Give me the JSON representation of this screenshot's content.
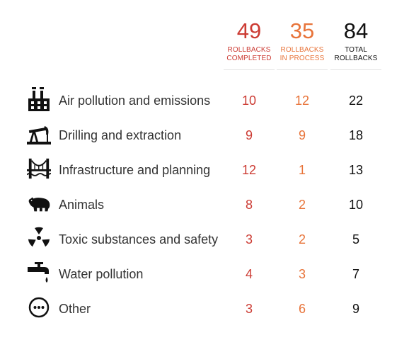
{
  "chart_data": {
    "type": "table",
    "columns": [
      {
        "value": "49",
        "label_line1": "ROLLBACKS",
        "label_line2": "COMPLETED",
        "color": "#cc3b33"
      },
      {
        "value": "35",
        "label_line1": "ROLLBACKS",
        "label_line2": "IN PROCESS",
        "color": "#e8743a"
      },
      {
        "value": "84",
        "label_line1": "TOTAL",
        "label_line2": "ROLLBACKS",
        "color": "#111111"
      }
    ],
    "rows": [
      {
        "icon": "factory-icon",
        "label": "Air pollution and emissions",
        "completed": "10",
        "in_process": "12",
        "total": "22"
      },
      {
        "icon": "oil-pump-icon",
        "label": "Drilling and extraction",
        "completed": "9",
        "in_process": "9",
        "total": "18"
      },
      {
        "icon": "bridge-icon",
        "label": "Infrastructure and planning",
        "completed": "12",
        "in_process": "1",
        "total": "13"
      },
      {
        "icon": "bear-icon",
        "label": "Animals",
        "completed": "8",
        "in_process": "2",
        "total": "10"
      },
      {
        "icon": "radiation-icon",
        "label": "Toxic substances and safety",
        "completed": "3",
        "in_process": "2",
        "total": "5"
      },
      {
        "icon": "faucet-icon",
        "label": "Water pollution",
        "completed": "4",
        "in_process": "3",
        "total": "7"
      },
      {
        "icon": "ellipsis-circle-icon",
        "label": "Other",
        "completed": "3",
        "in_process": "6",
        "total": "9"
      }
    ]
  }
}
